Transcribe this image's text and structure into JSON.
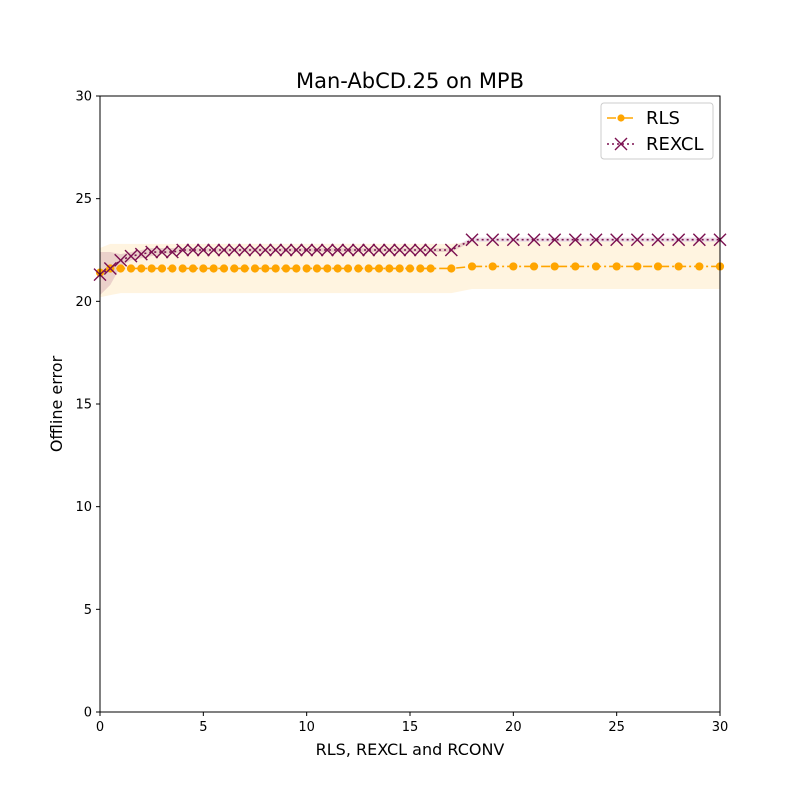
{
  "chart_data": {
    "type": "line",
    "title": "Man-AbCD.25 on MPB",
    "xlabel": "RLS, REXCL and RCONV",
    "ylabel": "Offline error",
    "xlim": [
      0,
      30
    ],
    "ylim": [
      0,
      30
    ],
    "xticks": [
      "0",
      "5",
      "10",
      "15",
      "20",
      "25",
      "30"
    ],
    "yticks": [
      "0",
      "5",
      "10",
      "15",
      "20",
      "25",
      "30"
    ],
    "grid": false,
    "legend_position": "top-right",
    "series": [
      {
        "name": "RLS",
        "color": "#ffa500",
        "linestyle": "dashdot",
        "marker": "circle",
        "band_color": "#ffa500",
        "x": [
          0,
          0.5,
          1,
          1.5,
          2,
          2.5,
          3,
          3.5,
          4,
          4.5,
          5,
          5.5,
          6,
          6.5,
          7,
          7.5,
          8,
          8.5,
          9,
          9.5,
          10,
          10.5,
          11,
          11.5,
          12,
          12.5,
          13,
          13.5,
          14,
          14.5,
          15,
          15.5,
          16,
          17,
          18,
          19,
          20,
          21,
          22,
          23,
          24,
          25,
          26,
          27,
          28,
          29,
          30
        ],
        "y": [
          21.4,
          21.6,
          21.6,
          21.6,
          21.6,
          21.6,
          21.6,
          21.6,
          21.6,
          21.6,
          21.6,
          21.6,
          21.6,
          21.6,
          21.6,
          21.6,
          21.6,
          21.6,
          21.6,
          21.6,
          21.6,
          21.6,
          21.6,
          21.6,
          21.6,
          21.6,
          21.6,
          21.6,
          21.6,
          21.6,
          21.6,
          21.6,
          21.6,
          21.6,
          21.7,
          21.7,
          21.7,
          21.7,
          21.7,
          21.7,
          21.7,
          21.7,
          21.7,
          21.7,
          21.7,
          21.7,
          21.7
        ],
        "band_lower": [
          20.2,
          20.3,
          20.4,
          20.4,
          20.4,
          20.4,
          20.4,
          20.4,
          20.4,
          20.4,
          20.4,
          20.4,
          20.4,
          20.4,
          20.4,
          20.4,
          20.4,
          20.4,
          20.4,
          20.4,
          20.4,
          20.4,
          20.4,
          20.4,
          20.4,
          20.4,
          20.4,
          20.4,
          20.4,
          20.4,
          20.4,
          20.4,
          20.4,
          20.4,
          20.6,
          20.6,
          20.6,
          20.6,
          20.6,
          20.6,
          20.6,
          20.6,
          20.6,
          20.6,
          20.6,
          20.6,
          20.6
        ],
        "band_upper": [
          22.6,
          22.8,
          22.8,
          22.8,
          22.8,
          22.8,
          22.8,
          22.8,
          22.8,
          22.8,
          22.8,
          22.8,
          22.8,
          22.8,
          22.8,
          22.8,
          22.8,
          22.8,
          22.8,
          22.8,
          22.8,
          22.8,
          22.8,
          22.8,
          22.8,
          22.8,
          22.8,
          22.8,
          22.8,
          22.8,
          22.8,
          22.8,
          22.8,
          22.8,
          22.9,
          22.9,
          22.9,
          22.9,
          22.9,
          22.9,
          22.9,
          22.9,
          22.9,
          22.9,
          22.9,
          22.9,
          22.9
        ]
      },
      {
        "name": "REXCL",
        "color": "#7b1050",
        "linestyle": "dotted",
        "marker": "x",
        "band_color": "#7b1050",
        "x": [
          0,
          0.5,
          1,
          1.5,
          2,
          2.5,
          3,
          3.5,
          4,
          4.5,
          5,
          5.5,
          6,
          6.5,
          7,
          7.5,
          8,
          8.5,
          9,
          9.5,
          10,
          10.5,
          11,
          11.5,
          12,
          12.5,
          13,
          13.5,
          14,
          14.5,
          15,
          15.5,
          16,
          17,
          18,
          19,
          20,
          21,
          22,
          23,
          24,
          25,
          26,
          27,
          28,
          29,
          30
        ],
        "y": [
          21.3,
          21.6,
          22.0,
          22.2,
          22.3,
          22.4,
          22.4,
          22.4,
          22.5,
          22.5,
          22.5,
          22.5,
          22.5,
          22.5,
          22.5,
          22.5,
          22.5,
          22.5,
          22.5,
          22.5,
          22.5,
          22.5,
          22.5,
          22.5,
          22.5,
          22.5,
          22.5,
          22.5,
          22.5,
          22.5,
          22.5,
          22.5,
          22.5,
          22.5,
          23.0,
          23.0,
          23.0,
          23.0,
          23.0,
          23.0,
          23.0,
          23.0,
          23.0,
          23.0,
          23.0,
          23.0,
          23.0
        ],
        "band_lower": [
          20.3,
          20.8,
          21.7,
          22.0,
          22.1,
          22.2,
          22.3,
          22.3,
          22.4,
          22.4,
          22.4,
          22.4,
          22.4,
          22.4,
          22.4,
          22.4,
          22.4,
          22.4,
          22.4,
          22.4,
          22.4,
          22.4,
          22.4,
          22.4,
          22.4,
          22.4,
          22.4,
          22.4,
          22.4,
          22.4,
          22.4,
          22.4,
          22.4,
          22.4,
          22.9,
          22.9,
          22.9,
          22.9,
          22.9,
          22.9,
          22.9,
          22.9,
          22.9,
          22.9,
          22.9,
          22.9,
          22.9
        ],
        "band_upper": [
          22.4,
          22.4,
          22.3,
          22.4,
          22.5,
          22.6,
          22.6,
          22.6,
          22.6,
          22.6,
          22.6,
          22.6,
          22.6,
          22.6,
          22.6,
          22.6,
          22.6,
          22.6,
          22.6,
          22.6,
          22.6,
          22.6,
          22.6,
          22.6,
          22.6,
          22.6,
          22.6,
          22.6,
          22.6,
          22.6,
          22.6,
          22.6,
          22.6,
          22.6,
          23.1,
          23.1,
          23.1,
          23.1,
          23.1,
          23.1,
          23.1,
          23.1,
          23.1,
          23.1,
          23.1,
          23.1,
          23.1
        ]
      }
    ]
  }
}
